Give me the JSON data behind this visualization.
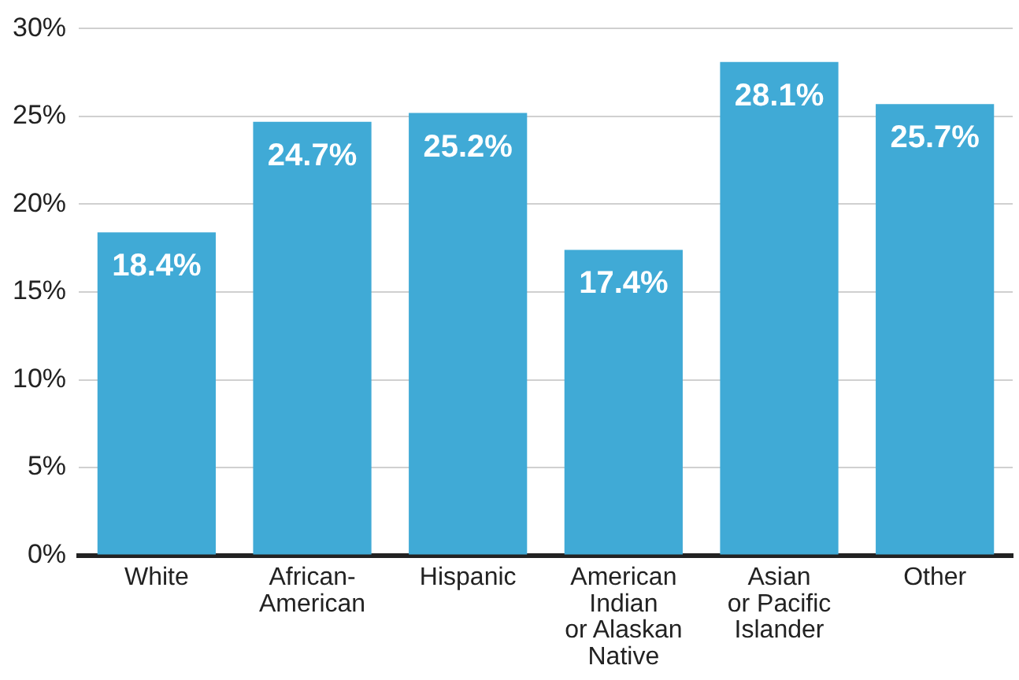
{
  "chart_data": {
    "type": "bar",
    "categories": [
      "White",
      "African-\nAmerican",
      "Hispanic",
      "American\nIndian\nor Alaskan\nNative",
      "Asian\nor Pacific\nIslander",
      "Other"
    ],
    "values": [
      18.4,
      24.7,
      25.2,
      17.4,
      28.1,
      25.7
    ],
    "value_labels": [
      "18.4%",
      "24.7%",
      "25.2%",
      "17.4%",
      "28.1%",
      "25.7%"
    ],
    "color": "#40aad6",
    "ylim": [
      0,
      30
    ],
    "yticks": [
      {
        "value": 0,
        "label": "0%"
      },
      {
        "value": 5,
        "label": "5%"
      },
      {
        "value": 10,
        "label": "10%"
      },
      {
        "value": 15,
        "label": "15%"
      },
      {
        "value": 20,
        "label": "20%"
      },
      {
        "value": 25,
        "label": "25%"
      },
      {
        "value": 30,
        "label": "30%"
      }
    ],
    "grid": "y",
    "legend": false
  }
}
